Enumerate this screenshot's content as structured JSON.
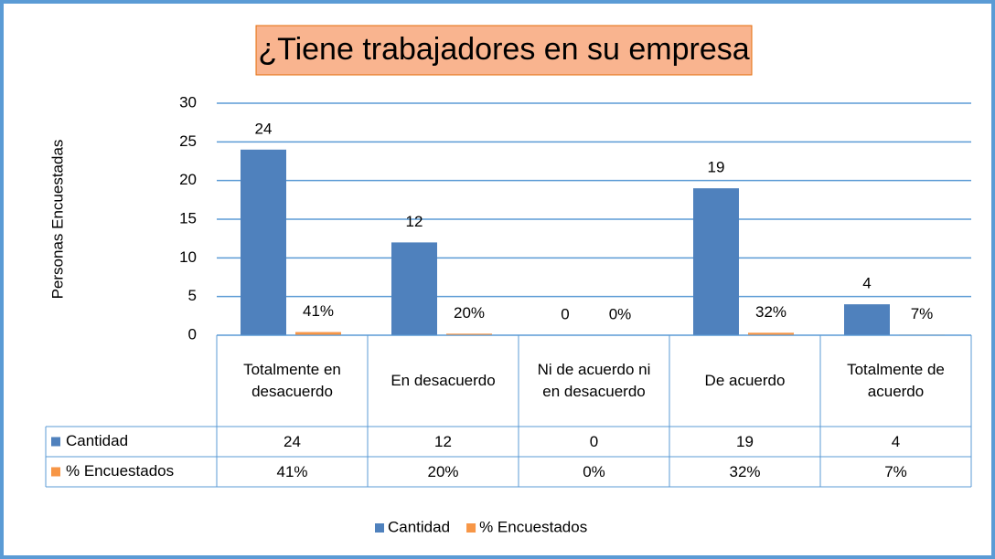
{
  "chart_data": {
    "type": "bar",
    "title": "¿Tiene trabajadores en su empresa",
    "y_label": "Personas Encuestadas",
    "categories": [
      "Totalmente en desacuerdo",
      "En desacuerdo",
      "Ni de acuerdo ni en desacuerdo",
      "De acuerdo",
      "Totalmente de acuerdo"
    ],
    "series": [
      {
        "name": "Cantidad",
        "color": "#4f81bd",
        "values": [
          24,
          12,
          0,
          19,
          4
        ]
      },
      {
        "name": "% Encuestados",
        "color": "#f79646",
        "values": [
          0.41,
          0.2,
          0,
          0.32,
          0.07
        ],
        "value_labels": [
          "41%",
          "20%",
          "0%",
          "32%",
          "7%"
        ]
      }
    ],
    "ylim": [
      0,
      30
    ],
    "yticks": [
      0,
      5,
      10,
      15,
      20,
      25,
      30
    ],
    "grid": true,
    "legend": "bottom",
    "data_table": true
  }
}
